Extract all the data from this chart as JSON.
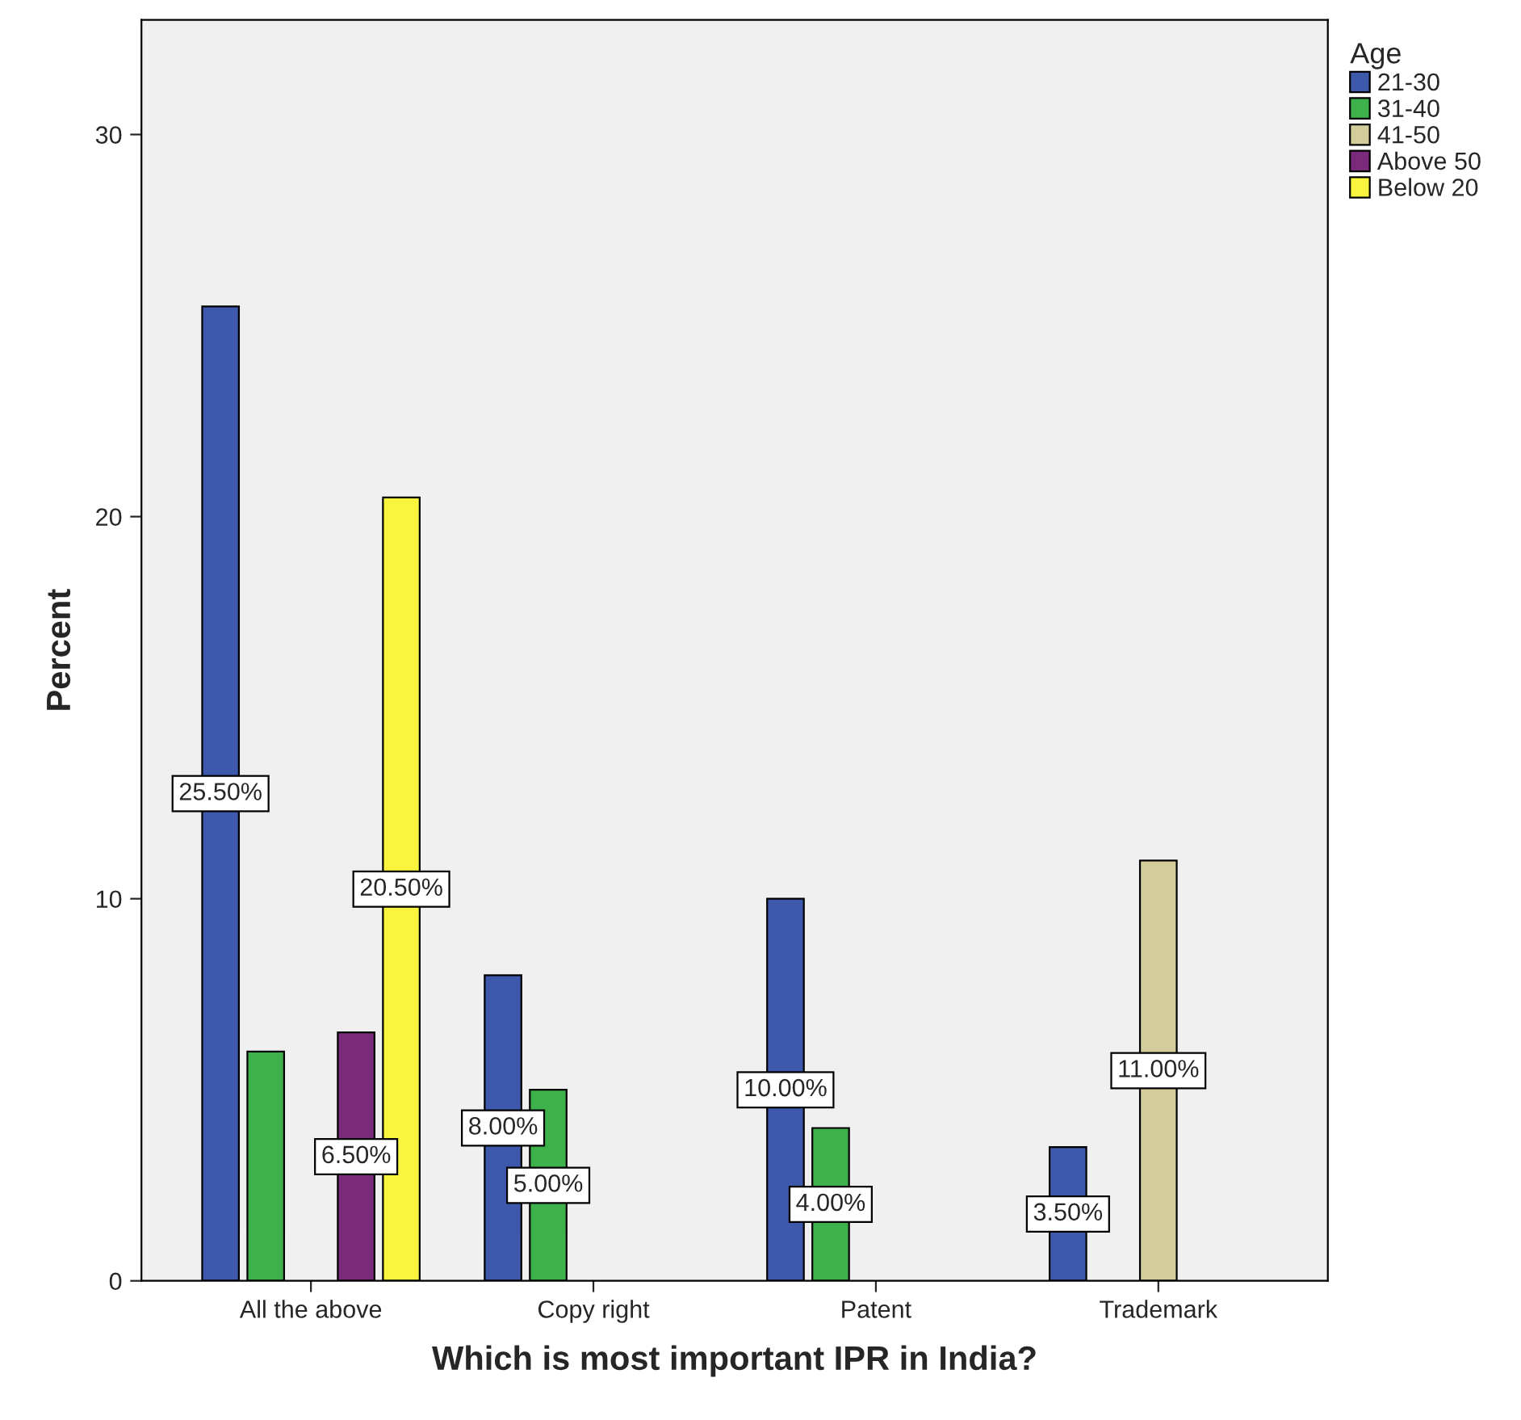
{
  "chart_data": {
    "type": "bar",
    "xlabel": "Which is most important IPR in India?",
    "ylabel": "Percent",
    "legend_title": "Age",
    "legend": "top right",
    "grid": false,
    "categories": [
      "All the above",
      "Copy right",
      "Patent",
      "Trademark"
    ],
    "ylim": [
      0,
      33
    ],
    "yticks": [
      0,
      10,
      20,
      30
    ],
    "series": [
      {
        "name": "21-30",
        "color": "#3e58ac",
        "values": [
          25.5,
          8.0,
          10.0,
          3.5
        ],
        "value_labels": [
          "25.50%",
          "8.00%",
          "10.00%",
          "3.50%"
        ]
      },
      {
        "name": "31-40",
        "color": "#3eb14c",
        "values": [
          6.0,
          5.0,
          4.0,
          null
        ],
        "value_labels": [
          null,
          "5.00%",
          "4.00%",
          null
        ]
      },
      {
        "name": "41-50",
        "color": "#d3cd9c",
        "values": [
          null,
          null,
          null,
          11.0
        ],
        "value_labels": [
          null,
          null,
          null,
          "11.00%"
        ]
      },
      {
        "name": "Above 50",
        "color": "#7a2a7a",
        "values": [
          6.5,
          null,
          null,
          null
        ],
        "value_labels": [
          "6.50%",
          null,
          null,
          null
        ]
      },
      {
        "name": "Below 20",
        "color": "#f9f53f",
        "values": [
          20.5,
          null,
          null,
          null
        ],
        "value_labels": [
          "20.50%",
          null,
          null,
          null
        ]
      }
    ]
  }
}
